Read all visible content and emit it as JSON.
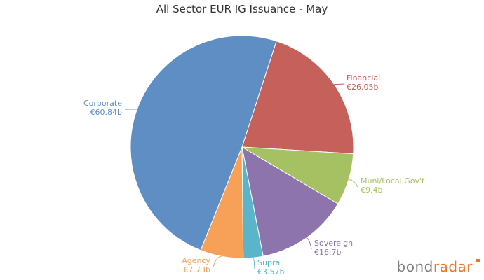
{
  "chart_data": {
    "type": "pie",
    "title": "All Sector EUR IG Issuance - May",
    "slices": [
      {
        "label": "Financial",
        "value_label": "€26.05b",
        "value": 26.05,
        "color": "#c5605a"
      },
      {
        "label": "Muni/Local Gov't",
        "value_label": "€9.4b",
        "value": 9.4,
        "color": "#a5c161"
      },
      {
        "label": "Sovereign",
        "value_label": "€16.7b",
        "value": 16.7,
        "color": "#8e74ac"
      },
      {
        "label": "Supra",
        "value_label": "€3.57b",
        "value": 3.57,
        "color": "#5ab4ca"
      },
      {
        "label": "Agency",
        "value_label": "€7.73b",
        "value": 7.73,
        "color": "#f6a157"
      },
      {
        "label": "Corporate",
        "value_label": "€60.84b",
        "value": 60.84,
        "color": "#5f8ec4"
      }
    ]
  },
  "branding": {
    "part1": "bond",
    "part2": "radar"
  }
}
